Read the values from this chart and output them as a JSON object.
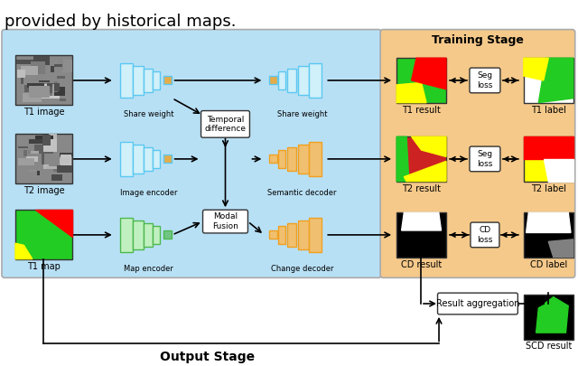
{
  "title_top": "provided by historical maps.",
  "training_stage_label": "Training Stage",
  "output_stage_label": "Output Stage",
  "bg_blue": "#b8e0f5",
  "bg_orange": "#f5c98a",
  "text_color": "#000000",
  "encoder_blue": "#5bc8f0",
  "encoder_green": "#4db84d",
  "decoder_orange": "#f0a020",
  "labels": {
    "t1_image": "T1 image",
    "t2_image": "T2 image",
    "t1_map": "T1 map",
    "share_weight1": "Share weight",
    "share_weight2": "Share weight",
    "image_encoder": "Image encoder",
    "map_encoder": "Map encoder",
    "temporal_diff": "Temporal\ndifference",
    "modal_fusion": "Modal\nFusion",
    "semantic_decoder": "Semantic decoder",
    "change_decoder": "Change decoder",
    "t1_result": "T1 result",
    "t2_result": "T2 result",
    "cd_result": "CD result",
    "t1_label": "T1 label",
    "t2_label": "T2 label",
    "cd_label": "CD label",
    "scd_result": "SCD result",
    "seg_loss1": "Seg\nloss",
    "seg_loss2": "Seg\nloss",
    "cd_loss": "CD\nloss",
    "result_aggregation": "Result aggregation"
  }
}
